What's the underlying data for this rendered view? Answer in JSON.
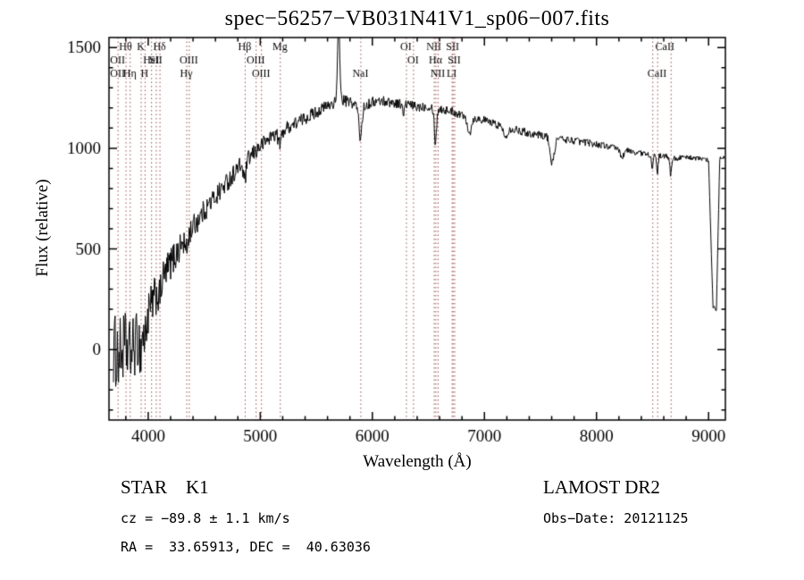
{
  "chart_data": {
    "type": "line",
    "title": "spec−56257−VB031N41V1_sp06−007.fits",
    "xlabel": "Wavelength (Å)",
    "ylabel": "Flux (relative)",
    "xlim": [
      3650,
      9150
    ],
    "ylim": [
      -350,
      1550
    ],
    "xticks": [
      4000,
      5000,
      6000,
      7000,
      8000,
      9000
    ],
    "yticks": [
      0,
      500,
      1000,
      1500
    ],
    "x_minor_interval": 200,
    "y_minor_interval": 100,
    "grid": false,
    "legend": "none",
    "series": [
      {
        "name": "spectrum",
        "color": "#000000",
        "x": [
          3690,
          3740,
          3790,
          3840,
          3890,
          3940,
          3990,
          4040,
          4090,
          4140,
          4200,
          4300,
          4400,
          4500,
          4600,
          4700,
          4800,
          4900,
          5000,
          5100,
          5200,
          5300,
          5400,
          5500,
          5600,
          5700,
          5800,
          5900,
          6000,
          6100,
          6200,
          6300,
          6400,
          6500,
          6600,
          6700,
          6800,
          6900,
          7000,
          7100,
          7200,
          7300,
          7400,
          7500,
          7600,
          7700,
          7800,
          7900,
          8000,
          8100,
          8200,
          8300,
          8400,
          8500,
          8600,
          8700,
          8800,
          8900,
          8960,
          9000,
          9040,
          9070,
          9100,
          9140
        ],
        "y": [
          0,
          -30,
          20,
          -20,
          30,
          80,
          150,
          230,
          300,
          360,
          430,
          520,
          610,
          690,
          760,
          830,
          900,
          950,
          1010,
          1060,
          1090,
          1120,
          1150,
          1180,
          1210,
          1240,
          1230,
          1200,
          1230,
          1235,
          1225,
          1220,
          1205,
          1210,
          1195,
          1185,
          1165,
          1150,
          1140,
          1120,
          1100,
          1090,
          1075,
          1065,
          1055,
          1045,
          1038,
          1030,
          1020,
          1010,
          995,
          985,
          975,
          965,
          960,
          950,
          955,
          950,
          945,
          940,
          210,
          200,
          950,
          955
        ]
      }
    ],
    "features": [
      {
        "center": 5700,
        "width": 9,
        "amp": 420
      },
      {
        "center": 5893,
        "width": 13,
        "amp": -150
      },
      {
        "center": 4861,
        "width": 12,
        "amp": -90
      },
      {
        "center": 4340,
        "width": 10,
        "amp": -70
      },
      {
        "center": 4101,
        "width": 10,
        "amp": -60
      },
      {
        "center": 3968,
        "width": 8,
        "amp": -80
      },
      {
        "center": 3933,
        "width": 8,
        "amp": -90
      },
      {
        "center": 5175,
        "width": 14,
        "amp": -60
      },
      {
        "center": 6277,
        "width": 9,
        "amp": -50
      },
      {
        "center": 6563,
        "width": 10,
        "amp": -170
      },
      {
        "center": 6867,
        "width": 16,
        "amp": -80
      },
      {
        "center": 7186,
        "width": 18,
        "amp": -40
      },
      {
        "center": 7605,
        "width": 18,
        "amp": -130
      },
      {
        "center": 8227,
        "width": 14,
        "amp": -40
      },
      {
        "center": 8498,
        "width": 7,
        "amp": -60
      },
      {
        "center": 8542,
        "width": 7,
        "amp": -90
      },
      {
        "center": 8662,
        "width": 7,
        "amp": -90
      }
    ],
    "noise_profile": [
      [
        3690,
        190
      ],
      [
        3900,
        150
      ],
      [
        4100,
        95
      ],
      [
        4400,
        60
      ],
      [
        4800,
        45
      ],
      [
        5200,
        35
      ],
      [
        5600,
        30
      ],
      [
        6000,
        26
      ],
      [
        6500,
        24
      ],
      [
        7000,
        20
      ],
      [
        7600,
        20
      ],
      [
        8200,
        16
      ],
      [
        8700,
        13
      ],
      [
        9140,
        10
      ]
    ],
    "marker_lines": [
      3727,
      3798,
      3835,
      3933,
      3968,
      4026,
      4068,
      4101,
      4340,
      4363,
      4861,
      4959,
      5007,
      5175,
      5893,
      6300,
      6363,
      6548,
      6563,
      6583,
      6708,
      6716,
      6731,
      8498,
      8542,
      8662
    ],
    "marker_labels": [
      {
        "wavelength": 3798,
        "label": "Hθ",
        "row": 1
      },
      {
        "wavelength": 3933,
        "label": "K",
        "row": 1
      },
      {
        "wavelength": 4101,
        "label": "Hδ",
        "row": 1
      },
      {
        "wavelength": 3727,
        "label": "OII",
        "row": 2
      },
      {
        "wavelength": 4026,
        "label": "HeI",
        "row": 2
      },
      {
        "wavelength": 4068,
        "label": "SII",
        "row": 2
      },
      {
        "wavelength": 3727,
        "label": "OII",
        "row": 3
      },
      {
        "wavelength": 3835,
        "label": "Hη",
        "row": 3
      },
      {
        "wavelength": 3968,
        "label": "H",
        "row": 3
      },
      {
        "wavelength": 4363,
        "label": "OIII",
        "row": 2
      },
      {
        "wavelength": 4340,
        "label": "Hγ",
        "row": 3
      },
      {
        "wavelength": 4861,
        "label": "Hβ",
        "row": 1
      },
      {
        "wavelength": 4959,
        "label": "OIII",
        "row": 2
      },
      {
        "wavelength": 5007,
        "label": "OIII",
        "row": 3
      },
      {
        "wavelength": 5175,
        "label": "Mg",
        "row": 1
      },
      {
        "wavelength": 5893,
        "label": "NaI",
        "row": 3
      },
      {
        "wavelength": 6300,
        "label": "OI",
        "row": 1
      },
      {
        "wavelength": 6363,
        "label": "OI",
        "row": 2
      },
      {
        "wavelength": 6548,
        "label": "NII",
        "row": 1
      },
      {
        "wavelength": 6716,
        "label": "SII",
        "row": 1
      },
      {
        "wavelength": 6563,
        "label": "Hα",
        "row": 2
      },
      {
        "wavelength": 6731,
        "label": "SII",
        "row": 2
      },
      {
        "wavelength": 6583,
        "label": "NII",
        "row": 3
      },
      {
        "wavelength": 6708,
        "label": "LI",
        "row": 3
      },
      {
        "wavelength": 8610,
        "label": "CaII",
        "row": 1
      },
      {
        "wavelength": 8540,
        "label": "CaII",
        "row": 3
      }
    ]
  },
  "annotations": {
    "object_type": "STAR    K1",
    "cz": "cz = −89.8 ± 1.1 km/s",
    "radec": "RA =  33.65913, DEC =  40.63036",
    "survey": "LAMOST DR2",
    "obs_date": "Obs−Date: 20121125"
  },
  "colors": {
    "spectrum": "#000000",
    "marker_line": "#9e4b4b",
    "axis": "#000000",
    "background": "#ffffff",
    "text": "#000000"
  }
}
